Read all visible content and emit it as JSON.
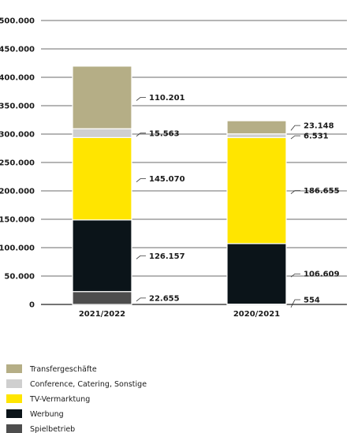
{
  "chart_data": {
    "type": "bar",
    "stacked": true,
    "categories": [
      "2021/2022",
      "2020/2021"
    ],
    "ylim": [
      0,
      500000
    ],
    "y_ticks": [
      "0",
      "50.000",
      "100.000",
      "150.000",
      "200.000",
      "250.000",
      "300.000",
      "350.000",
      "400.000",
      "450.000",
      "500.000"
    ],
    "grid": true,
    "legend_position": "bottom-left",
    "series": [
      {
        "name": "Spielbetrieb",
        "color": "#4d4d4d",
        "values": [
          22655,
          554
        ],
        "labels": [
          "22.655",
          "554"
        ]
      },
      {
        "name": "Werbung",
        "color": "#0b1419",
        "values": [
          126157,
          106609
        ],
        "labels": [
          "126.157",
          "106.609"
        ]
      },
      {
        "name": "TV-Vermarktung",
        "color": "#ffe500",
        "values": [
          145070,
          186655
        ],
        "labels": [
          "145.070",
          "186.655"
        ]
      },
      {
        "name": "Conference, Catering, Sonstige",
        "color": "#cfcfcf",
        "values": [
          15563,
          6531
        ],
        "labels": [
          "15.563",
          "6.531"
        ]
      },
      {
        "name": "Transfergeschäfte",
        "color": "#b5ae86",
        "values": [
          110201,
          23148
        ],
        "labels": [
          "110.201",
          "23.148"
        ]
      }
    ],
    "legend_order": [
      "Transfergeschäfte",
      "Conference, Catering, Sonstige",
      "TV-Vermarktung",
      "Werbung",
      "Spielbetrieb"
    ]
  }
}
